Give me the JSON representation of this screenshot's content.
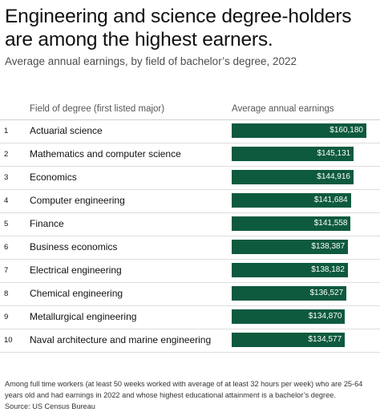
{
  "title": "Engineering and science degree-holders are among the highest earners.",
  "subtitle": "Average annual earnings, by field of bachelor’s degree, 2022",
  "columns": {
    "field": "Field of degree (first listed major)",
    "earnings": "Average annual earnings"
  },
  "chart_data": {
    "type": "bar",
    "title": "Engineering and science degree-holders are among the highest earners.",
    "subtitle": "Average annual earnings, by field of bachelor’s degree, 2022",
    "ranks": [
      "1",
      "2",
      "3",
      "4",
      "5",
      "6",
      "7",
      "8",
      "9",
      "10"
    ],
    "categories": [
      "Actuarial science",
      "Mathematics and computer science",
      "Economics",
      "Computer engineering",
      "Finance",
      "Business economics",
      "Electrical engineering",
      "Chemical engineering",
      "Metallurgical engineering",
      "Naval architecture and marine engineering"
    ],
    "values": [
      160180,
      145131,
      144916,
      141684,
      141558,
      138387,
      138182,
      136527,
      134870,
      134577
    ],
    "value_labels": [
      "$160,180",
      "$145,131",
      "$144,916",
      "$141,684",
      "$141,558",
      "$138,387",
      "$138,182",
      "$136,527",
      "$134,870",
      "$134,577"
    ],
    "ylim": [
      0,
      160180
    ],
    "bar_color": "#0e5a3e",
    "orientation": "horizontal"
  },
  "footnote": "Among full time workers (at least 50 weeks worked with average of at least 32 hours per week) who are 25-64 years old and had earnings in 2022 and whose highest educational attainment is a bachelor’s degree.",
  "source": "Source: US Census Bureau"
}
